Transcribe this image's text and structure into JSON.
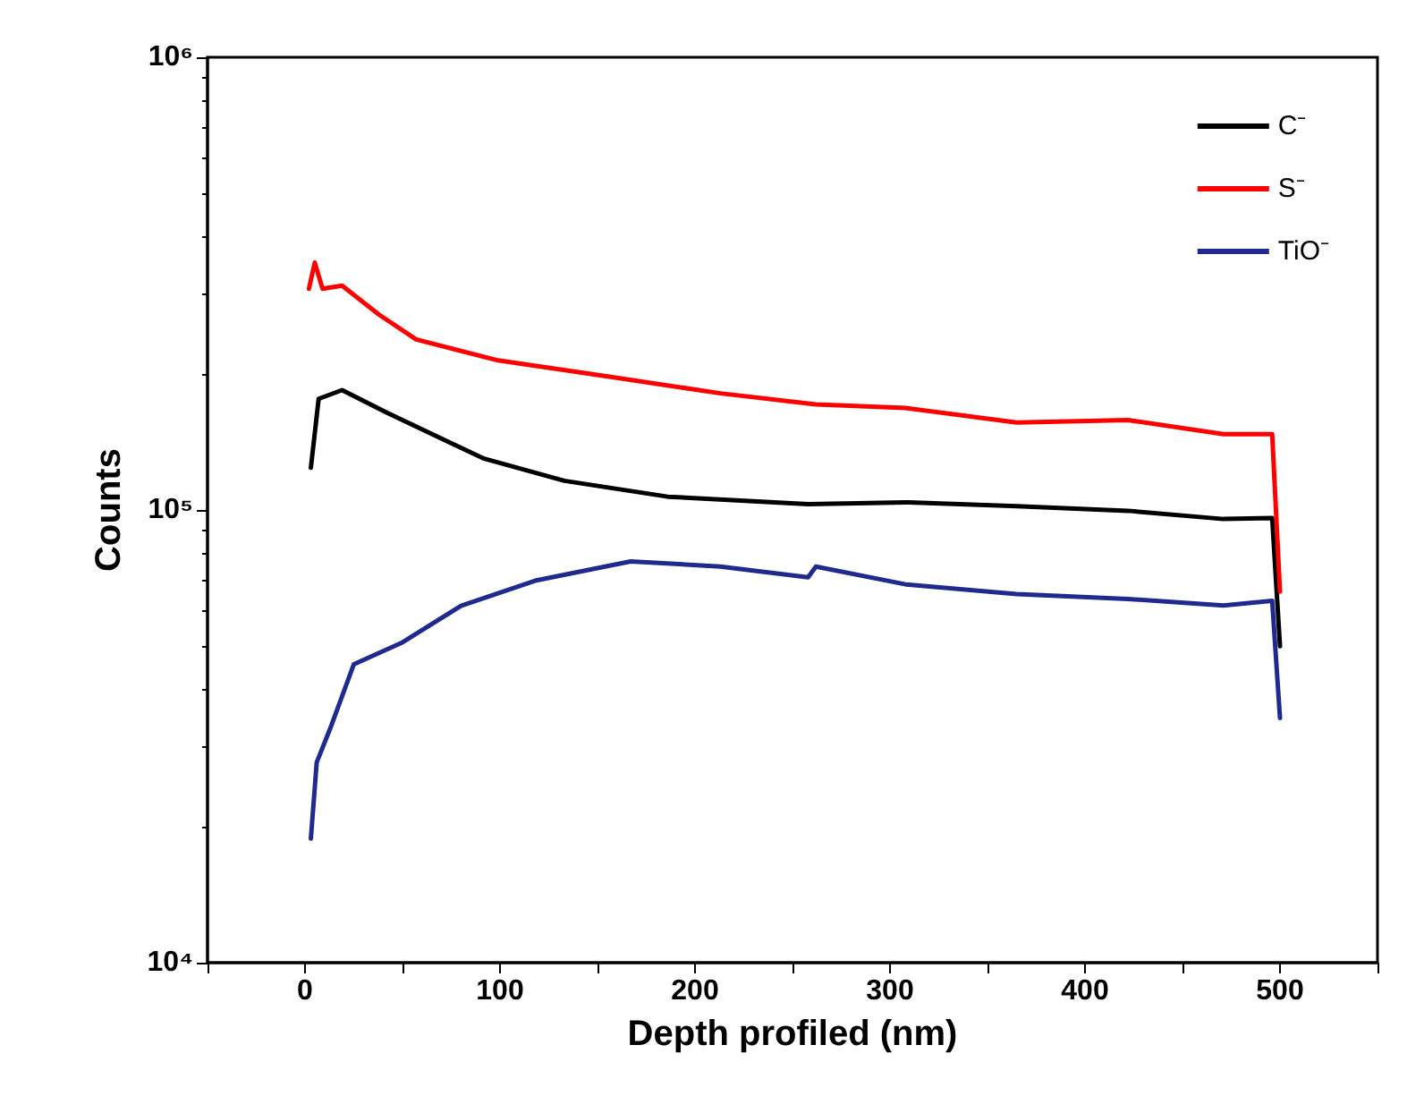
{
  "chart_data": {
    "type": "line",
    "xlabel": "Depth profiled (nm)",
    "ylabel": "Counts",
    "log": "y",
    "xlim": [
      -50,
      550
    ],
    "xticks": [
      {
        "value": -50,
        "label": null
      },
      0,
      {
        "value": 50,
        "label": null
      },
      100,
      {
        "value": 150,
        "label": null
      },
      200,
      {
        "value": 250,
        "label": null
      },
      300,
      {
        "value": 350,
        "label": null
      },
      400,
      {
        "value": 450,
        "label": null
      },
      500,
      {
        "value": 550,
        "label": null
      }
    ],
    "ylim": [
      10000,
      1000000
    ],
    "yticks": [
      {
        "value": 10000,
        "label": "10⁴"
      },
      {
        "value": 100000,
        "label": "10⁵"
      },
      {
        "value": 1000000,
        "label": "10⁶"
      }
    ],
    "grid": false,
    "legend": "top right",
    "marker": "none",
    "line_style": "solid",
    "series": [
      {
        "name": "C⁻",
        "color": "#000000",
        "x": [
          3,
          7,
          19,
          42,
          91.5,
          133,
          186,
          258,
          308,
          365,
          422,
          471,
          496,
          500
        ],
        "values": [
          124000,
          176000,
          184000,
          164000,
          130000,
          116000,
          107000,
          103000,
          104000,
          102000,
          99600,
          95500,
          96000,
          50000
        ]
      },
      {
        "name": "S⁻",
        "color": "#ff0000",
        "x": [
          2,
          5,
          9,
          19,
          38,
          57,
          99,
          156,
          213,
          262,
          308,
          365,
          422,
          471,
          496,
          500
        ],
        "values": [
          308000,
          352000,
          308000,
          313000,
          270000,
          238000,
          214000,
          197000,
          181000,
          171000,
          168000,
          156000,
          158000,
          147000,
          147000,
          66000
        ]
      },
      {
        "name": "TiO⁻",
        "color": "#1f2a8f",
        "x": [
          3,
          6,
          13.5,
          25,
          50,
          80,
          118,
          167,
          213,
          258,
          262,
          308,
          365,
          422,
          471,
          496,
          500
        ],
        "values": [
          18800,
          27700,
          33400,
          45600,
          51000,
          61400,
          69800,
          77000,
          75000,
          71000,
          75000,
          68500,
          65200,
          63600,
          61500,
          63000,
          34700
        ]
      }
    ]
  }
}
